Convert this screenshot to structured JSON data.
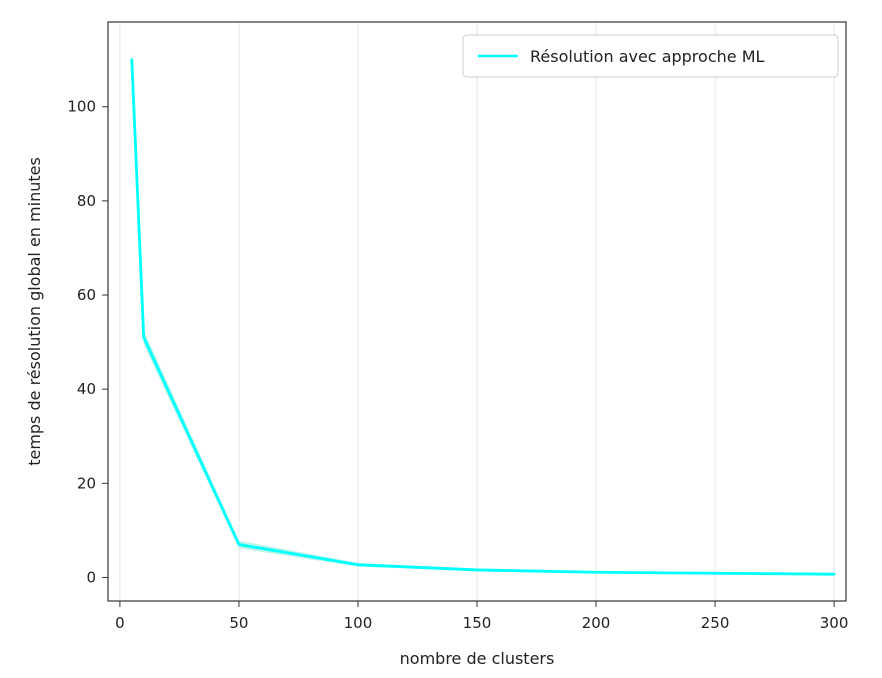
{
  "chart_data": {
    "type": "line",
    "title": "",
    "xlabel": "nombre de clusters",
    "ylabel": "temps de résolution global en minutes",
    "xlim": [
      -5,
      305
    ],
    "ylim": [
      -5,
      118
    ],
    "xticks": [
      0,
      50,
      100,
      150,
      200,
      250,
      300
    ],
    "yticks": [
      0,
      20,
      40,
      60,
      80,
      100
    ],
    "grid": {
      "x": true,
      "y": false
    },
    "legend": {
      "position": "top-right",
      "entries": [
        "Résolution avec approche ML"
      ]
    },
    "colors": {
      "line": "#00ffff",
      "band": "#66e6cc",
      "axis": "#333333",
      "grid": "#e6e6e6"
    },
    "series": [
      {
        "name": "Résolution avec approche ML",
        "x": [
          5,
          10,
          50,
          100,
          150,
          200,
          250,
          300
        ],
        "y": [
          110,
          51,
          7,
          2.7,
          1.6,
          1.1,
          0.9,
          0.7
        ],
        "band": {
          "lower": [
            108,
            49.5,
            6.2,
            2.3,
            1.3,
            0.9,
            0.7,
            0.55
          ],
          "upper": [
            112,
            52.5,
            7.8,
            3.1,
            1.9,
            1.3,
            1.05,
            0.85
          ]
        }
      }
    ]
  }
}
